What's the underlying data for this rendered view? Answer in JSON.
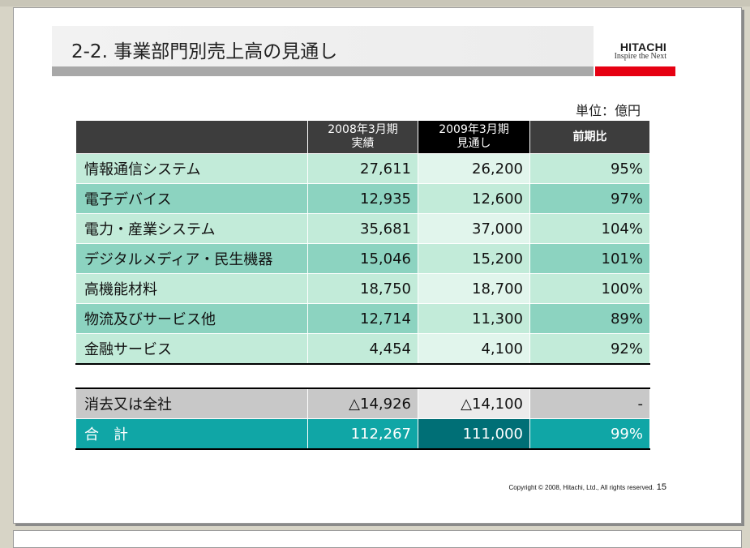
{
  "slide": {
    "title": "2-2. 事業部門別売上高の見通し",
    "logo": {
      "name": "HITACHI",
      "tagline": "Inspire the Next"
    },
    "unit": "単位：億円",
    "table": {
      "headers": {
        "col1_line1": "2008年3月期",
        "col1_line2": "実績",
        "col2_line1": "2009年3月期",
        "col2_line2": "見通し",
        "col3": "前期比"
      },
      "rows": [
        {
          "name": "情報通信システム",
          "actual": "27,611",
          "forecast": "26,200",
          "ratio": "95%"
        },
        {
          "name": "電子デバイス",
          "actual": "12,935",
          "forecast": "12,600",
          "ratio": "97%"
        },
        {
          "name": "電力・産業システム",
          "actual": "35,681",
          "forecast": "37,000",
          "ratio": "104%"
        },
        {
          "name": "デジタルメディア・民生機器",
          "actual": "15,046",
          "forecast": "15,200",
          "ratio": "101%"
        },
        {
          "name": "高機能材料",
          "actual": "18,750",
          "forecast": "18,700",
          "ratio": "100%"
        },
        {
          "name": "物流及びサービス他",
          "actual": "12,714",
          "forecast": "11,300",
          "ratio": "89%"
        },
        {
          "name": "金融サービス",
          "actual": "4,454",
          "forecast": "4,100",
          "ratio": "92%"
        }
      ],
      "elimination": {
        "name": "消去又は全社",
        "actual": "△14,926",
        "forecast": "△14,100",
        "ratio": "-"
      },
      "total": {
        "name": "合　計",
        "actual": "112,267",
        "forecast": "111,000",
        "ratio": "99%"
      }
    },
    "copyright": "Copyright © 2008, Hitachi, Ltd., All rights reserved.",
    "page_number": "15"
  },
  "colors": {
    "accent_red": "#e60012",
    "row_light": "#c2ebd9",
    "row_dark": "#8cd3c0",
    "total_teal": "#10a6a6",
    "total_dark_teal": "#006f76",
    "header_dark": "#3d3d3d"
  }
}
